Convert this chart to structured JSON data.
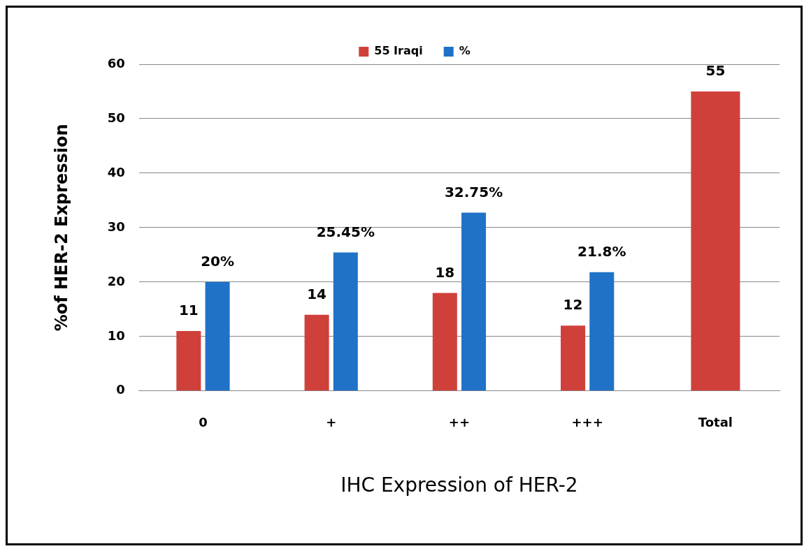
{
  "chart_data": {
    "type": "bar",
    "categories": [
      "0",
      "+",
      "++",
      "+++",
      "Total"
    ],
    "xlabel": "IHC Expression of HER-2",
    "ylabel": "%of HER-2 Expression",
    "series": [
      {
        "name": "55 Iraqi",
        "color": "#d0403a",
        "values": [
          11,
          14,
          18,
          12,
          55
        ],
        "value_labels": [
          "11",
          "14",
          "18",
          "12",
          "55"
        ]
      },
      {
        "name": "%",
        "color": "#1f72c8",
        "values": [
          20,
          25.45,
          32.75,
          21.8,
          null
        ],
        "value_labels": [
          "20%",
          "25.45%",
          "32.75%",
          "21.8%",
          null
        ]
      }
    ],
    "ylim": [
      0,
      60
    ],
    "yticks": [
      0,
      10,
      20,
      30,
      40,
      50,
      60
    ],
    "grid": "y",
    "legend": "top"
  }
}
